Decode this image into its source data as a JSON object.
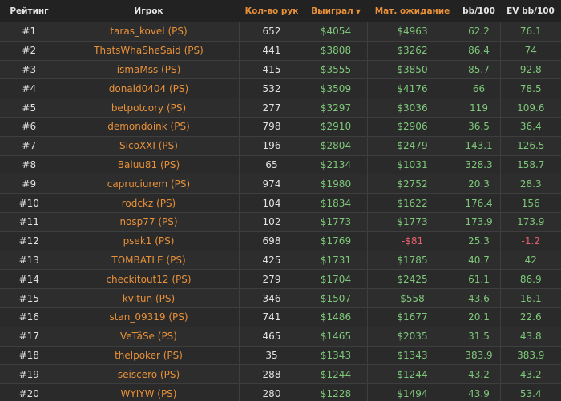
{
  "header": {
    "rank": "Рейтинг",
    "player": "Игрок",
    "hands": "Кол-во рук",
    "won": "Выиграл",
    "won_sort_icon": "caret-down-icon",
    "ev": "Мат. ожидание",
    "bb100": "bb/100",
    "evbb100": "EV bb/100"
  },
  "colors": {
    "accent": "#e8913a",
    "positive": "#7ec87a",
    "negative": "#e4606c"
  },
  "rows": [
    {
      "rank": "#1",
      "player": "taras_kovel (PS)",
      "hands": "652",
      "won": "$4054",
      "ev": "$4963",
      "bb100": "62.2",
      "evbb100": "76.1"
    },
    {
      "rank": "#2",
      "player": "ThatsWhaSheSaid (PS)",
      "hands": "441",
      "won": "$3808",
      "ev": "$3262",
      "bb100": "86.4",
      "evbb100": "74"
    },
    {
      "rank": "#3",
      "player": "ismaMss (PS)",
      "hands": "415",
      "won": "$3555",
      "ev": "$3850",
      "bb100": "85.7",
      "evbb100": "92.8"
    },
    {
      "rank": "#4",
      "player": "donald0404 (PS)",
      "hands": "532",
      "won": "$3509",
      "ev": "$4176",
      "bb100": "66",
      "evbb100": "78.5"
    },
    {
      "rank": "#5",
      "player": "betpotcory (PS)",
      "hands": "277",
      "won": "$3297",
      "ev": "$3036",
      "bb100": "119",
      "evbb100": "109.6"
    },
    {
      "rank": "#6",
      "player": "demondoink (PS)",
      "hands": "798",
      "won": "$2910",
      "ev": "$2906",
      "bb100": "36.5",
      "evbb100": "36.4"
    },
    {
      "rank": "#7",
      "player": "SicoXXI (PS)",
      "hands": "196",
      "won": "$2804",
      "ev": "$2479",
      "bb100": "143.1",
      "evbb100": "126.5"
    },
    {
      "rank": "#8",
      "player": "Baluu81 (PS)",
      "hands": "65",
      "won": "$2134",
      "ev": "$1031",
      "bb100": "328.3",
      "evbb100": "158.7"
    },
    {
      "rank": "#9",
      "player": "capruciurem (PS)",
      "hands": "974",
      "won": "$1980",
      "ev": "$2752",
      "bb100": "20.3",
      "evbb100": "28.3"
    },
    {
      "rank": "#10",
      "player": "rodckz (PS)",
      "hands": "104",
      "won": "$1834",
      "ev": "$1622",
      "bb100": "176.4",
      "evbb100": "156"
    },
    {
      "rank": "#11",
      "player": "nosp77 (PS)",
      "hands": "102",
      "won": "$1773",
      "ev": "$1773",
      "bb100": "173.9",
      "evbb100": "173.9"
    },
    {
      "rank": "#12",
      "player": "psek1 (PS)",
      "hands": "698",
      "won": "$1769",
      "ev": "-$81",
      "bb100": "25.3",
      "evbb100": "-1.2"
    },
    {
      "rank": "#13",
      "player": "TOMBATLE (PS)",
      "hands": "425",
      "won": "$1731",
      "ev": "$1785",
      "bb100": "40.7",
      "evbb100": "42"
    },
    {
      "rank": "#14",
      "player": "checkitout12 (PS)",
      "hands": "279",
      "won": "$1704",
      "ev": "$2425",
      "bb100": "61.1",
      "evbb100": "86.9"
    },
    {
      "rank": "#15",
      "player": "kvitun (PS)",
      "hands": "346",
      "won": "$1507",
      "ev": "$558",
      "bb100": "43.6",
      "evbb100": "16.1"
    },
    {
      "rank": "#16",
      "player": "stan_09319 (PS)",
      "hands": "741",
      "won": "$1486",
      "ev": "$1677",
      "bb100": "20.1",
      "evbb100": "22.6"
    },
    {
      "rank": "#17",
      "player": "VeTäSe (PS)",
      "hands": "465",
      "won": "$1465",
      "ev": "$2035",
      "bb100": "31.5",
      "evbb100": "43.8"
    },
    {
      "rank": "#18",
      "player": "thelpoker (PS)",
      "hands": "35",
      "won": "$1343",
      "ev": "$1343",
      "bb100": "383.9",
      "evbb100": "383.9"
    },
    {
      "rank": "#19",
      "player": "seiscero (PS)",
      "hands": "288",
      "won": "$1244",
      "ev": "$1244",
      "bb100": "43.2",
      "evbb100": "43.2"
    },
    {
      "rank": "#20",
      "player": "WYIYW (PS)",
      "hands": "280",
      "won": "$1228",
      "ev": "$1494",
      "bb100": "43.9",
      "evbb100": "53.4"
    }
  ]
}
